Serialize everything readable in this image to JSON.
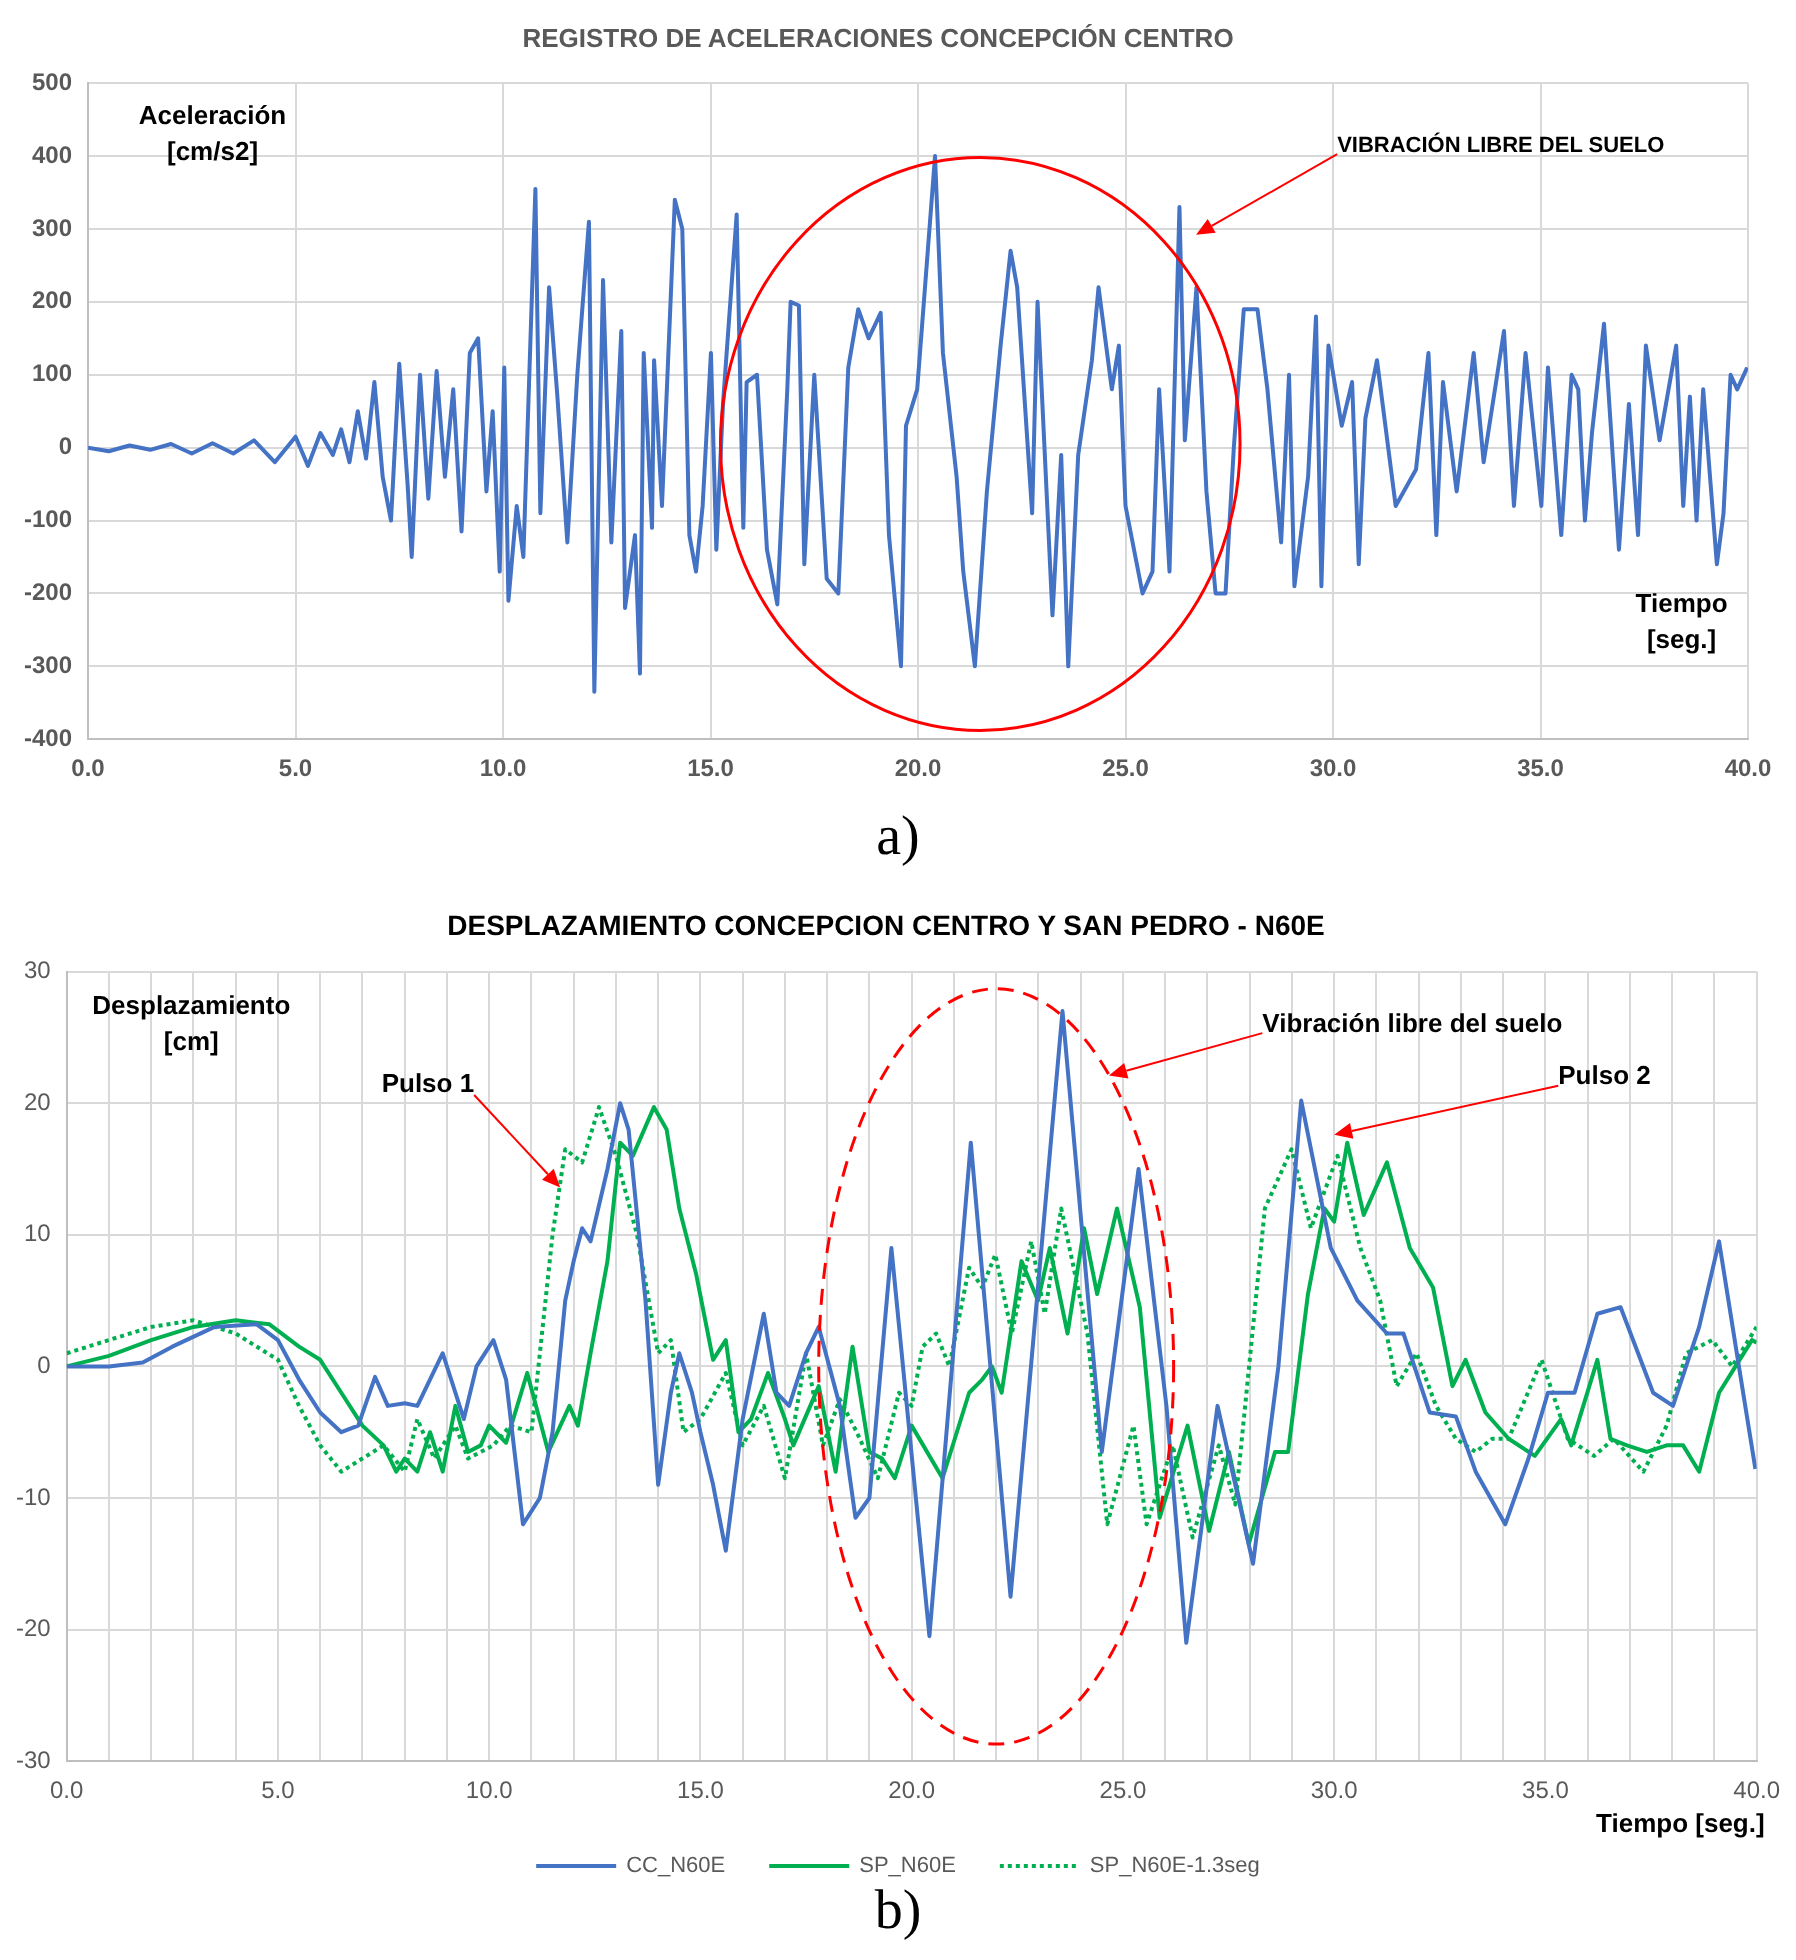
{
  "chart_data": [
    {
      "type": "line",
      "title": "REGISTRO DE ACELERACIONES CONCEPCIÓN CENTRO",
      "ylabel": "Aceleración [cm/s2]",
      "xlabel": "Tiempo [seg.]",
      "grid": true,
      "marker": "none",
      "xlim": [
        0,
        40
      ],
      "xticks": [
        {
          "value": 0,
          "label": "0.0"
        },
        {
          "value": 5,
          "label": "5.0"
        },
        {
          "value": 10,
          "label": "10.0"
        },
        {
          "value": 15,
          "label": "15.0"
        },
        {
          "value": 20,
          "label": "20.0"
        },
        {
          "value": 25,
          "label": "25.0"
        },
        {
          "value": 30,
          "label": "30.0"
        },
        {
          "value": 35,
          "label": "35.0"
        },
        {
          "value": 40,
          "label": "40.0"
        }
      ],
      "ylim": [
        -400,
        500
      ],
      "yticks": [
        -400,
        -300,
        -200,
        -100,
        0,
        100,
        200,
        300,
        400,
        500
      ],
      "annotations": [
        "VIBRACIÓN LIBRE DEL SUELO",
        "a)"
      ],
      "series": [
        {
          "color": "#4472c4",
          "line_style": "solid",
          "x": [
            0,
            0.5,
            1,
            1.5,
            2,
            2.5,
            3,
            3.5,
            4,
            4.5,
            5,
            5.3,
            5.6,
            5.9,
            6.1,
            6.3,
            6.5,
            6.7,
            6.9,
            7.1,
            7.3,
            7.5,
            7.7,
            7.8,
            8.0,
            8.2,
            8.4,
            8.6,
            8.8,
            9.0,
            9.2,
            9.4,
            9.6,
            9.75,
            9.92,
            10.03,
            10.13,
            10.33,
            10.49,
            10.78,
            10.9,
            11.11,
            11.31,
            11.55,
            11.79,
            12.07,
            12.2,
            12.41,
            12.61,
            12.85,
            12.94,
            13.18,
            13.3,
            13.39,
            13.59,
            13.64,
            13.83,
            14.14,
            14.32,
            14.49,
            14.65,
            14.81,
            15.01,
            15.14,
            15.3,
            15.63,
            15.79,
            15.87,
            16.12,
            16.36,
            16.61,
            16.85,
            16.93,
            17.13,
            17.26,
            17.5,
            17.8,
            18.08,
            18.32,
            18.56,
            18.81,
            19.1,
            19.3,
            19.59,
            19.71,
            19.98,
            20.41,
            20.6,
            20.93,
            21.09,
            21.37,
            21.66,
            21.99,
            22.23,
            22.39,
            22.75,
            22.88,
            23.24,
            23.45,
            23.62,
            23.86,
            24.19,
            24.35,
            24.67,
            24.84,
            25.0,
            25.41,
            25.65,
            25.81,
            26.06,
            26.3,
            26.43,
            26.71,
            26.95,
            27.17,
            27.41,
            27.61,
            27.85,
            28.18,
            28.42,
            28.75,
            28.94,
            29.07,
            29.4,
            29.59,
            29.72,
            29.89,
            30.21,
            30.46,
            30.62,
            30.78,
            31.06,
            31.51,
            32.0,
            32.3,
            32.49,
            32.65,
            32.98,
            33.39,
            33.63,
            34.12,
            34.36,
            34.64,
            35.02,
            35.18,
            35.5,
            35.75,
            35.91,
            36.07,
            36.24,
            36.53,
            36.89,
            37.13,
            37.35,
            37.54,
            37.87,
            38.27,
            38.44,
            38.6,
            38.76,
            38.92,
            39.25,
            39.41,
            39.58,
            39.74,
            39.98
          ],
          "values": [
            0,
            -5,
            3,
            -3,
            5,
            -8,
            6,
            -8,
            10,
            -20,
            15,
            -25,
            20,
            -10,
            25,
            -20,
            50,
            -15,
            90,
            -40,
            -100,
            115,
            -50,
            -150,
            100,
            -70,
            105,
            -40,
            80,
            -115,
            130,
            150,
            -60,
            50,
            -170,
            110,
            -210,
            -80,
            -150,
            355,
            -90,
            220,
            70,
            -130,
            100,
            310,
            -335,
            230,
            -130,
            160,
            -220,
            -120,
            -310,
            130,
            -110,
            120,
            -80,
            340,
            300,
            -120,
            -170,
            -80,
            130,
            -140,
            60,
            320,
            -110,
            90,
            100,
            -140,
            -215,
            80,
            200,
            195,
            -160,
            100,
            -180,
            -200,
            110,
            190,
            150,
            185,
            -120,
            -300,
            30,
            80,
            400,
            130,
            -40,
            -170,
            -300,
            -60,
            140,
            270,
            220,
            -90,
            200,
            -230,
            -10,
            -300,
            -10,
            120,
            220,
            80,
            140,
            -80,
            -200,
            -170,
            80,
            -170,
            330,
            10,
            220,
            -60,
            -200,
            -200,
            0,
            190,
            190,
            80,
            -130,
            100,
            -190,
            -40,
            180,
            -190,
            140,
            30,
            90,
            -160,
            40,
            120,
            -80,
            -30,
            130,
            -120,
            90,
            -60,
            130,
            -20,
            160,
            -80,
            130,
            -80,
            110,
            -120,
            100,
            80,
            -100,
            20,
            170,
            -140,
            60,
            -120,
            140,
            10,
            140,
            -80,
            70,
            -100,
            80,
            -160,
            -90,
            100,
            80,
            110
          ]
        }
      ]
    },
    {
      "type": "line",
      "title": "DESPLAZAMIENTO CONCEPCION CENTRO Y SAN PEDRO - N60E",
      "ylabel": "Desplazamiento [cm]",
      "xlabel": "Tiempo [seg.]",
      "grid": true,
      "marker": "none",
      "legend": "bottom",
      "xlim": [
        0,
        40
      ],
      "xticks": [
        {
          "value": 0,
          "label": "0.0"
        },
        {
          "value": 1,
          "label": null
        },
        {
          "value": 2,
          "label": null
        },
        {
          "value": 3,
          "label": null
        },
        {
          "value": 4,
          "label": null
        },
        {
          "value": 5,
          "label": "5.0"
        },
        {
          "value": 6,
          "label": null
        },
        {
          "value": 7,
          "label": null
        },
        {
          "value": 8,
          "label": null
        },
        {
          "value": 9,
          "label": null
        },
        {
          "value": 10,
          "label": "10.0"
        },
        {
          "value": 11,
          "label": null
        },
        {
          "value": 12,
          "label": null
        },
        {
          "value": 13,
          "label": null
        },
        {
          "value": 14,
          "label": null
        },
        {
          "value": 15,
          "label": "15.0"
        },
        {
          "value": 16,
          "label": null
        },
        {
          "value": 17,
          "label": null
        },
        {
          "value": 18,
          "label": null
        },
        {
          "value": 19,
          "label": null
        },
        {
          "value": 20,
          "label": "20.0"
        },
        {
          "value": 21,
          "label": null
        },
        {
          "value": 22,
          "label": null
        },
        {
          "value": 23,
          "label": null
        },
        {
          "value": 24,
          "label": null
        },
        {
          "value": 25,
          "label": "25.0"
        },
        {
          "value": 26,
          "label": null
        },
        {
          "value": 27,
          "label": null
        },
        {
          "value": 28,
          "label": null
        },
        {
          "value": 29,
          "label": null
        },
        {
          "value": 30,
          "label": "30.0"
        },
        {
          "value": 31,
          "label": null
        },
        {
          "value": 32,
          "label": null
        },
        {
          "value": 33,
          "label": null
        },
        {
          "value": 34,
          "label": null
        },
        {
          "value": 35,
          "label": "35.0"
        },
        {
          "value": 36,
          "label": null
        },
        {
          "value": 37,
          "label": null
        },
        {
          "value": 38,
          "label": null
        },
        {
          "value": 39,
          "label": null
        },
        {
          "value": 40,
          "label": "40.0"
        }
      ],
      "ylim": [
        -30,
        30
      ],
      "yticks": [
        -30,
        -20,
        -10,
        0,
        10,
        20,
        30
      ],
      "annotations": [
        "Pulso 1",
        "Vibración libre del suelo",
        "Pulso 2",
        "b)"
      ],
      "series": [
        {
          "name": "CC_N60E",
          "color": "#4472c4",
          "line_style": "solid",
          "x": [
            0,
            1,
            1.8,
            2.5,
            3.5,
            4.5,
            5,
            5.5,
            6,
            6.5,
            6.9,
            7.3,
            7.6,
            8.0,
            8.3,
            8.9,
            9.2,
            9.4,
            9.7,
            10.1,
            10.4,
            10.8,
            11.2,
            11.5,
            11.8,
            12.0,
            12.2,
            12.4,
            12.8,
            13.1,
            13.3,
            13.7,
            14.0,
            14.3,
            14.5,
            14.8,
            15.0,
            15.3,
            15.6,
            16.0,
            16.5,
            16.8,
            17.1,
            17.5,
            17.8,
            18.3,
            18.67,
            19.0,
            19.52,
            20.42,
            21.4,
            22.34,
            23.57,
            24.5,
            25.37,
            26.03,
            26.5,
            27.24,
            28.08,
            28.68,
            29.22,
            29.92,
            30.55,
            31.25,
            31.64,
            32.26,
            32.88,
            33.35,
            34.05,
            34.6,
            35.06,
            35.69,
            36.23,
            36.78,
            37.55,
            38.02,
            38.64,
            39.11,
            39.58,
            39.97
          ],
          "values": [
            0,
            0,
            0.3,
            1.5,
            3,
            3.2,
            2,
            -1,
            -3.5,
            -5,
            -4.5,
            -0.8,
            -3,
            -2.8,
            -3,
            1,
            -2,
            -4,
            0,
            2,
            -1,
            -12,
            -10,
            -5,
            5,
            8,
            10.5,
            9.5,
            15,
            20,
            18,
            5,
            -9,
            -2,
            1,
            -2,
            -5,
            -9,
            -14,
            -4,
            4,
            -2,
            -3,
            1,
            3,
            -3,
            -11.5,
            -10,
            9,
            -20.5,
            17,
            -17.5,
            27,
            -6.5,
            15,
            -3,
            -21,
            -3,
            -15,
            0,
            20.2,
            9,
            5,
            2.5,
            2.5,
            -3.5,
            -3.8,
            -8,
            -12,
            -7,
            -2,
            -2,
            4,
            4.5,
            -2,
            -3,
            3,
            9.5,
            0,
            -7.8
          ]
        },
        {
          "name": "SP_N60E",
          "color": "#00b050",
          "line_style": "solid",
          "x": [
            0,
            1,
            2,
            3,
            4,
            4.8,
            5.5,
            6,
            6.5,
            7,
            7.5,
            7.8,
            8,
            8.3,
            8.6,
            8.9,
            9.2,
            9.5,
            9.8,
            10,
            10.4,
            10.9,
            11.4,
            11.9,
            12.1,
            12.4,
            12.8,
            13.1,
            13.4,
            13.9,
            14.2,
            14.5,
            14.9,
            15.3,
            15.6,
            15.9,
            16.2,
            16.6,
            17,
            17.2,
            17.8,
            18.2,
            18.6,
            19,
            19.3,
            19.6,
            20,
            20.73,
            21.36,
            21.67,
            21.9,
            22.13,
            22.6,
            22.99,
            23.27,
            23.69,
            24.08,
            24.39,
            24.86,
            25.4,
            25.87,
            26.53,
            27.04,
            27.51,
            27.98,
            28.6,
            28.91,
            29.38,
            29.77,
            30,
            30.31,
            30.7,
            31.25,
            31.79,
            32.34,
            32.8,
            33.11,
            33.58,
            34.13,
            34.75,
            35.37,
            35.61,
            36.23,
            36.54,
            36.93,
            37.4,
            37.87,
            38.26,
            38.64,
            39.11,
            39.5,
            39.89,
            40
          ],
          "values": [
            0,
            0.8,
            2,
            3,
            3.5,
            3.2,
            1.5,
            0.5,
            -2,
            -4.5,
            -6,
            -8,
            -7,
            -8,
            -5,
            -8,
            -3,
            -6.5,
            -6,
            -4.5,
            -5.8,
            -0.5,
            -6.5,
            -3,
            -4.5,
            1,
            8,
            17,
            16,
            19.7,
            18,
            12,
            7,
            0.5,
            2,
            -5,
            -4,
            -0.5,
            -4,
            -6,
            -1.5,
            -8,
            1.5,
            -6.5,
            -7,
            -8.5,
            -4.5,
            -8.5,
            -2,
            -1,
            0,
            -2,
            8,
            5,
            9,
            2.5,
            10.5,
            5.5,
            12,
            4.5,
            -11.5,
            -4.5,
            -12.5,
            -6.5,
            -13.5,
            -6.5,
            -6.5,
            5.5,
            12,
            11,
            17,
            11.5,
            15.5,
            9,
            6,
            -1.5,
            0.5,
            -3.5,
            -5.5,
            -6.8,
            -4,
            -6,
            0.5,
            -5.5,
            -6,
            -6.5,
            -6,
            -6,
            -8,
            -2,
            0,
            2,
            1.8
          ]
        },
        {
          "name": "SP_N60E-1.3seg",
          "color": "#00b050",
          "line_style": "dotted",
          "x": [
            0,
            1,
            2,
            3,
            4,
            5,
            5.5,
            6,
            6.5,
            7,
            7.5,
            8,
            8.3,
            8.7,
            9.2,
            9.5,
            10.1,
            10.5,
            11,
            11.5,
            11.8,
            12.2,
            12.6,
            13,
            13.5,
            14,
            14.3,
            14.6,
            15,
            15.6,
            16,
            16.5,
            17,
            17.5,
            17.9,
            18.3,
            18.7,
            19.2,
            19.7,
            20,
            20.26,
            20.58,
            20.89,
            21.36,
            21.67,
            21.98,
            22.37,
            22.83,
            23.15,
            23.54,
            24.16,
            24.63,
            25.25,
            25.56,
            26.18,
            26.65,
            27.27,
            27.66,
            28.36,
            28.99,
            29.45,
            30.08,
            30.62,
            31.09,
            31.48,
            31.95,
            32.41,
            32.88,
            33.35,
            33.74,
            34.13,
            34.91,
            35.53,
            36.15,
            36.62,
            37.32,
            37.87,
            38.33,
            38.95,
            39.42,
            40
          ],
          "values": [
            1,
            2,
            3,
            3.5,
            2.5,
            0.5,
            -3,
            -6,
            -8,
            -7,
            -6,
            -8,
            -4,
            -7,
            -4.5,
            -7,
            -6,
            -4.5,
            -5,
            10,
            16.5,
            15.5,
            19.7,
            16,
            10,
            1,
            2,
            -5,
            -4,
            -0.5,
            -6,
            -3,
            -8.5,
            1,
            -6,
            -2.5,
            -5,
            -8.5,
            -2,
            -3,
            1.5,
            2.5,
            0,
            7.5,
            6,
            8.5,
            2.5,
            9.5,
            4,
            12,
            2.5,
            -12,
            -4.5,
            -12,
            -6,
            -13,
            -6,
            -10.5,
            12,
            16.5,
            10.5,
            16,
            9,
            5,
            -1.5,
            1,
            -3,
            -5.5,
            -6.5,
            -5.5,
            -5.5,
            0.5,
            -5.5,
            -6.8,
            -5.5,
            -8,
            -4.5,
            1,
            2,
            0,
            3
          ]
        }
      ]
    }
  ]
}
